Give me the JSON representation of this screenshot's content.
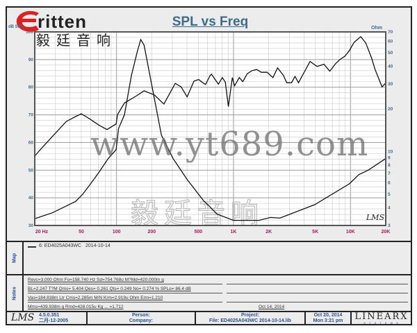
{
  "logo": {
    "word": "ritten",
    "chinese": "毅廷音响",
    "accent": "#e02020"
  },
  "chart_data": {
    "type": "line",
    "title": "SPL vs Freq",
    "ylabel": "dB SPL",
    "y2label": "Ohm",
    "xscale": "log",
    "xlim": [
      20,
      20000
    ],
    "ylim": [
      30,
      100
    ],
    "y2scale": "log",
    "y2lim": [
      3,
      70
    ],
    "xticks": [
      "20 Hz",
      "50",
      "100",
      "200",
      "500",
      "1K",
      "2K",
      "5K",
      "10K",
      "20K"
    ],
    "xtick_values": [
      20,
      50,
      100,
      200,
      500,
      1000,
      2000,
      5000,
      10000,
      20000
    ],
    "yticks": [
      30,
      40,
      50,
      60,
      70,
      80,
      90,
      100
    ],
    "y2ticks": [
      3,
      4,
      5,
      6,
      7,
      8,
      9,
      10,
      20,
      30,
      40,
      50,
      60,
      70
    ],
    "grid": true,
    "series": [
      {
        "axis": "left",
        "x": [
          20,
          22.5,
          28.3,
          37.2,
          44.7,
          50,
          58.8,
          70.6,
          82.8,
          99.3,
          102,
          117,
          147,
          172,
          211,
          254,
          318,
          357,
          401,
          459,
          503,
          551,
          577,
          632,
          648,
          742,
          802,
          851,
          904,
          977,
          1021,
          1120,
          1200,
          1312,
          1439,
          1577,
          1727,
          1937,
          2173,
          2381,
          2668,
          2857,
          3131,
          3357,
          3592,
          4508,
          5176,
          5930,
          6653,
          7451,
          8168,
          8953,
          9800,
          10740,
          12220,
          13500,
          15140,
          16220,
          18590,
          19900
        ],
        "y": [
          55.1,
          57.6,
          62.2,
          67.6,
          69.4,
          70.4,
          68.6,
          66.3,
          64.7,
          66.7,
          70.1,
          74.3,
          76.8,
          78.7,
          77.2,
          73.9,
          81.4,
          80.1,
          76.5,
          82.2,
          82.8,
          81.5,
          81.0,
          84.3,
          84.7,
          81.1,
          83.5,
          81.8,
          73.0,
          83.5,
          80.5,
          83.5,
          82.0,
          84.9,
          86.0,
          86.4,
          85.4,
          85.4,
          83.5,
          87.0,
          84.3,
          81.6,
          81.6,
          83.9,
          81.6,
          89.3,
          87.5,
          88.3,
          85.8,
          88.5,
          90.1,
          91.2,
          93.3,
          96.2,
          98.3,
          96.0,
          90.6,
          86.4,
          80.1,
          81.4
        ]
      },
      {
        "axis": "right",
        "x": [
          20,
          28.3,
          44.7,
          51.3,
          60.1,
          70.6,
          84.7,
          99.3,
          104,
          117,
          134,
          150,
          161,
          172,
          193,
          242,
          305,
          401,
          551,
          632,
          722,
          998,
          1652,
          2076,
          2490,
          4940,
          9800,
          11780,
          14140,
          19900
        ],
        "y": [
          3.35,
          3.69,
          4.44,
          4.98,
          5.91,
          7.11,
          8.89,
          10.3,
          14.5,
          18.2,
          34.5,
          50.3,
          61.8,
          56.5,
          34.5,
          13.0,
          8.89,
          6.35,
          4.52,
          4.05,
          3.61,
          3.26,
          3.26,
          3.42,
          3.38,
          4.21,
          5.91,
          6.86,
          7.38,
          8.89
        ]
      }
    ],
    "annotation": "LMS",
    "watermark_cn": "毅廷音响"
  },
  "map": {
    "label": "Map",
    "entry": "6: ED4025A043WC",
    "date": "2014-10-14"
  },
  "notes": {
    "label": "Notes",
    "lines": [
      "Revc=3.000 Ohm  Fo=158.740 Hz  Sd=754.768u M?Md=420.000m g",
      "BL=2.247 T?M  Qms= 5.404  Qes= 0.261  Qts= 0.249  No= 0.274 %  SPLo= 86.4 dB",
      "Vas=184.838m Ltr  Cms=2.285m M/N  Krm=2.919u Ohm  Erm=1.210",
      "Mms=439.938m g  Rmd=428.015u Kg ... =1.712"
    ],
    "right_line4": "Oct 14, 2014"
  },
  "footer": {
    "logo": "LMS",
    "version": "4.5.0.351",
    "build": "二月-12-2005",
    "person": "Person:",
    "company": "Company:",
    "project": "Project:",
    "file": "File: ED4025A043WC   2014-10-14.lib",
    "date": "Oct 20, 2014",
    "time": "Mon  3:21 pm",
    "brand": "LINEARX",
    "brand_sub": "S Y S T E M S"
  },
  "watermark": "www.yt689.com"
}
